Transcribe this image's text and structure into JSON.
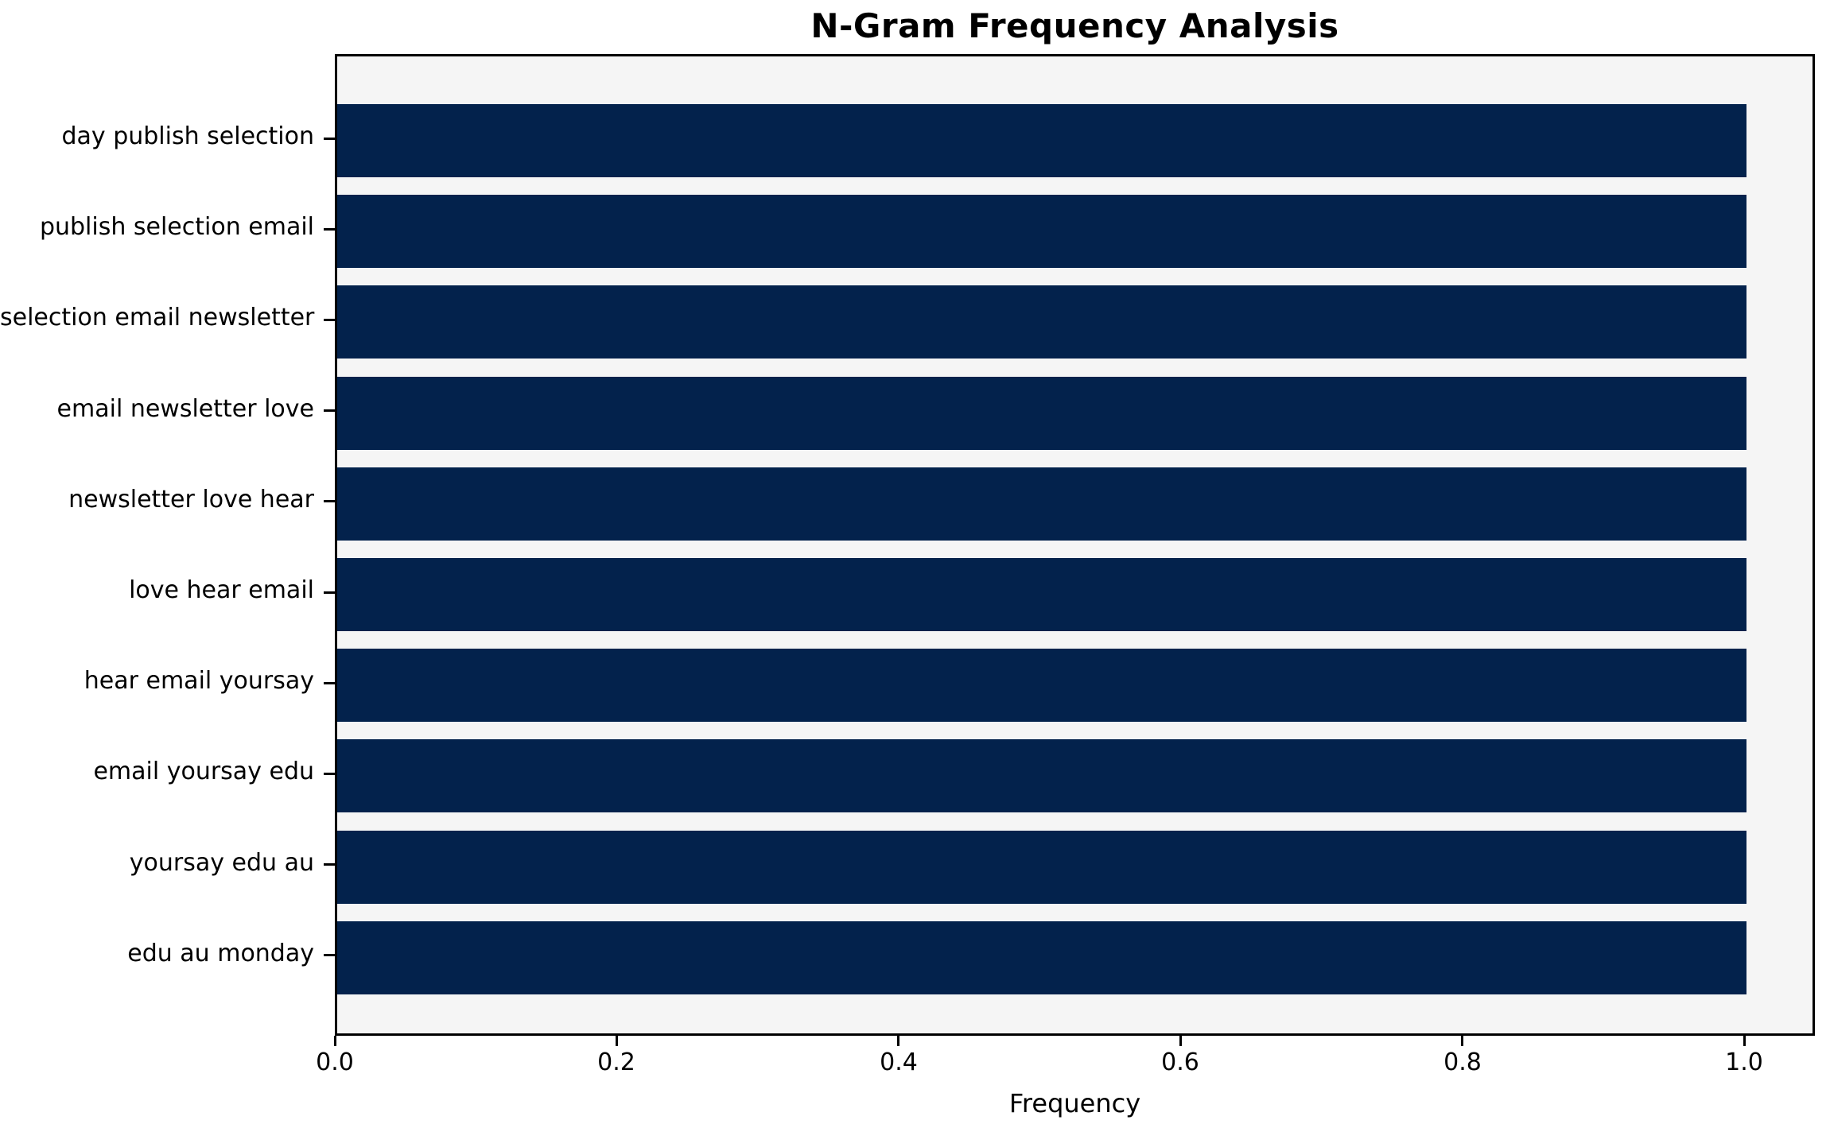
{
  "chart_data": {
    "type": "bar",
    "orientation": "horizontal",
    "title": "N-Gram Frequency Analysis",
    "xlabel": "Frequency",
    "ylabel": "",
    "categories": [
      "day publish selection",
      "publish selection email",
      "selection email newsletter",
      "email newsletter love",
      "newsletter love hear",
      "love hear email",
      "hear email yoursay",
      "email yoursay edu",
      "yoursay edu au",
      "edu au monday"
    ],
    "values": [
      1.0,
      1.0,
      1.0,
      1.0,
      1.0,
      1.0,
      1.0,
      1.0,
      1.0,
      1.0
    ],
    "xticks": [
      "0.0",
      "0.2",
      "0.4",
      "0.6",
      "0.8",
      "1.0"
    ],
    "xlim": [
      0.0,
      1.05
    ],
    "grid": false,
    "legend": null,
    "bar_color": "#03224c",
    "plot_background": "#f5f5f5",
    "figure_background": "#ffffff",
    "axis_color": "#000000"
  }
}
